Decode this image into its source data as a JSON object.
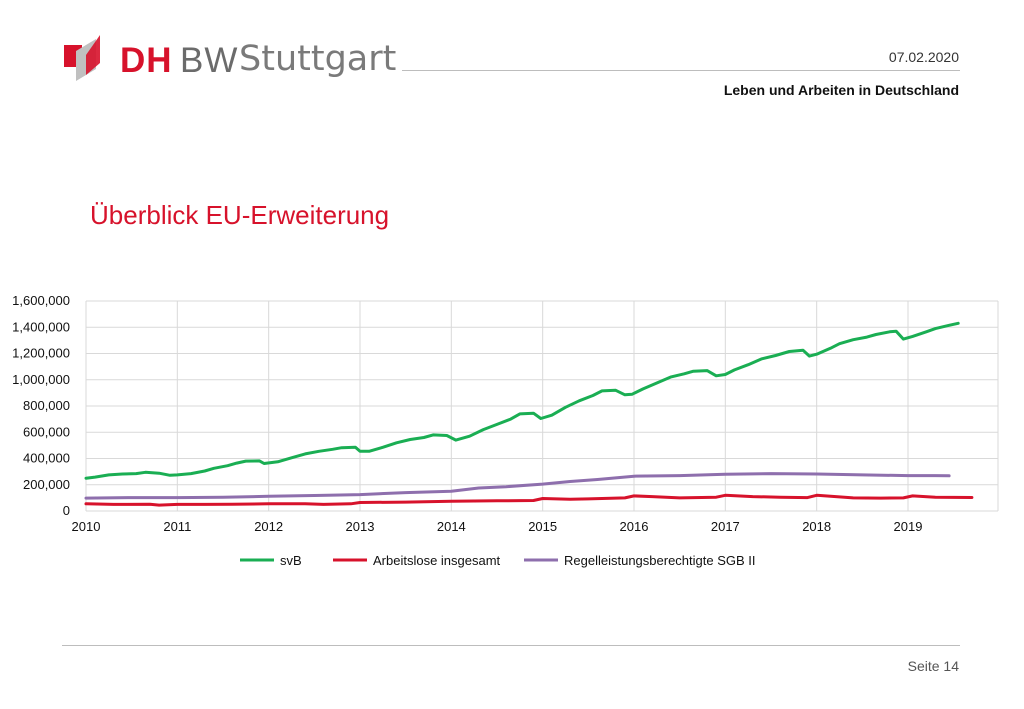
{
  "header": {
    "logo_dh": "DH",
    "logo_bw": "BW",
    "logo_city": "Stuttgart",
    "date": "07.02.2020",
    "title": "Leben und Arbeiten in Deutschland"
  },
  "slide": {
    "title": "Überblick EU-Erweiterung",
    "page": "Seite 14"
  },
  "colors": {
    "brand_red": "#d7122b",
    "svb": "#1aae53",
    "arbeitslose": "#d7122b",
    "sgb": "#8e6fad",
    "grid": "#d9d9d9"
  },
  "chart_data": {
    "type": "line",
    "title": "",
    "xlabel": "",
    "ylabel": "",
    "xlim": [
      2010,
      2020
    ],
    "ylim": [
      0,
      1600000
    ],
    "x_ticks": [
      2010,
      2011,
      2012,
      2013,
      2014,
      2015,
      2016,
      2017,
      2018,
      2019
    ],
    "y_ticks": [
      0,
      200000,
      400000,
      600000,
      800000,
      1000000,
      1200000,
      1400000,
      1600000
    ],
    "y_tick_labels": [
      "0",
      "200,000",
      "400,000",
      "600,000",
      "800,000",
      "1,000,000",
      "1,200,000",
      "1,400,000",
      "1,600,000"
    ],
    "grid": true,
    "legend_position": "bottom",
    "series": [
      {
        "name": "svB",
        "color": "#1aae53",
        "points": [
          [
            2010.0,
            250000
          ],
          [
            2010.1,
            258000
          ],
          [
            2010.25,
            275000
          ],
          [
            2010.4,
            282000
          ],
          [
            2010.55,
            285000
          ],
          [
            2010.65,
            295000
          ],
          [
            2010.8,
            288000
          ],
          [
            2010.92,
            272000
          ],
          [
            2011.0,
            275000
          ],
          [
            2011.15,
            285000
          ],
          [
            2011.3,
            305000
          ],
          [
            2011.4,
            325000
          ],
          [
            2011.55,
            345000
          ],
          [
            2011.65,
            365000
          ],
          [
            2011.75,
            380000
          ],
          [
            2011.9,
            382000
          ],
          [
            2011.95,
            362000
          ],
          [
            2012.1,
            375000
          ],
          [
            2012.25,
            405000
          ],
          [
            2012.4,
            435000
          ],
          [
            2012.55,
            455000
          ],
          [
            2012.7,
            470000
          ],
          [
            2012.8,
            482000
          ],
          [
            2012.95,
            485000
          ],
          [
            2013.0,
            455000
          ],
          [
            2013.1,
            455000
          ],
          [
            2013.25,
            485000
          ],
          [
            2013.4,
            520000
          ],
          [
            2013.55,
            545000
          ],
          [
            2013.7,
            560000
          ],
          [
            2013.8,
            580000
          ],
          [
            2013.95,
            575000
          ],
          [
            2014.05,
            540000
          ],
          [
            2014.2,
            570000
          ],
          [
            2014.35,
            620000
          ],
          [
            2014.5,
            660000
          ],
          [
            2014.65,
            700000
          ],
          [
            2014.75,
            740000
          ],
          [
            2014.9,
            745000
          ],
          [
            2014.98,
            705000
          ],
          [
            2015.1,
            730000
          ],
          [
            2015.25,
            790000
          ],
          [
            2015.4,
            840000
          ],
          [
            2015.55,
            880000
          ],
          [
            2015.65,
            915000
          ],
          [
            2015.8,
            920000
          ],
          [
            2015.9,
            885000
          ],
          [
            2015.98,
            890000
          ],
          [
            2016.1,
            930000
          ],
          [
            2016.25,
            975000
          ],
          [
            2016.4,
            1020000
          ],
          [
            2016.55,
            1045000
          ],
          [
            2016.65,
            1065000
          ],
          [
            2016.8,
            1070000
          ],
          [
            2016.9,
            1030000
          ],
          [
            2017.0,
            1040000
          ],
          [
            2017.1,
            1075000
          ],
          [
            2017.25,
            1115000
          ],
          [
            2017.4,
            1160000
          ],
          [
            2017.55,
            1185000
          ],
          [
            2017.7,
            1215000
          ],
          [
            2017.85,
            1225000
          ],
          [
            2017.92,
            1180000
          ],
          [
            2018.0,
            1195000
          ],
          [
            2018.15,
            1240000
          ],
          [
            2018.25,
            1275000
          ],
          [
            2018.4,
            1305000
          ],
          [
            2018.55,
            1325000
          ],
          [
            2018.65,
            1345000
          ],
          [
            2018.8,
            1365000
          ],
          [
            2018.87,
            1370000
          ],
          [
            2018.95,
            1310000
          ],
          [
            2019.05,
            1330000
          ],
          [
            2019.2,
            1365000
          ],
          [
            2019.3,
            1390000
          ],
          [
            2019.45,
            1415000
          ],
          [
            2019.55,
            1430000
          ]
        ]
      },
      {
        "name": "Arbeitslose insgesamt",
        "color": "#d7122b",
        "points": [
          [
            2010.0,
            55000
          ],
          [
            2010.3,
            50000
          ],
          [
            2010.7,
            52000
          ],
          [
            2010.8,
            45000
          ],
          [
            2011.0,
            50000
          ],
          [
            2011.3,
            50000
          ],
          [
            2011.6,
            52000
          ],
          [
            2012.0,
            55000
          ],
          [
            2012.4,
            55000
          ],
          [
            2012.6,
            50000
          ],
          [
            2012.9,
            55000
          ],
          [
            2013.0,
            65000
          ],
          [
            2013.5,
            68000
          ],
          [
            2014.0,
            75000
          ],
          [
            2014.5,
            78000
          ],
          [
            2014.9,
            80000
          ],
          [
            2015.0,
            95000
          ],
          [
            2015.3,
            90000
          ],
          [
            2015.5,
            92000
          ],
          [
            2015.9,
            100000
          ],
          [
            2016.0,
            115000
          ],
          [
            2016.2,
            110000
          ],
          [
            2016.5,
            100000
          ],
          [
            2016.9,
            105000
          ],
          [
            2017.0,
            120000
          ],
          [
            2017.3,
            110000
          ],
          [
            2017.6,
            105000
          ],
          [
            2017.9,
            102000
          ],
          [
            2018.0,
            120000
          ],
          [
            2018.4,
            100000
          ],
          [
            2018.7,
            98000
          ],
          [
            2018.95,
            100000
          ],
          [
            2019.05,
            115000
          ],
          [
            2019.3,
            105000
          ],
          [
            2019.7,
            103000
          ]
        ]
      },
      {
        "name": "Regelleistungsberechtigte SGB II",
        "color": "#8e6fad",
        "points": [
          [
            2010.0,
            98000
          ],
          [
            2010.5,
            102000
          ],
          [
            2011.0,
            102000
          ],
          [
            2011.5,
            105000
          ],
          [
            2012.0,
            112000
          ],
          [
            2012.5,
            118000
          ],
          [
            2013.0,
            125000
          ],
          [
            2013.5,
            140000
          ],
          [
            2014.0,
            150000
          ],
          [
            2014.3,
            175000
          ],
          [
            2014.6,
            185000
          ],
          [
            2015.0,
            205000
          ],
          [
            2015.3,
            225000
          ],
          [
            2015.6,
            240000
          ],
          [
            2016.0,
            265000
          ],
          [
            2016.5,
            270000
          ],
          [
            2017.0,
            280000
          ],
          [
            2017.5,
            285000
          ],
          [
            2018.0,
            282000
          ],
          [
            2018.5,
            275000
          ],
          [
            2019.0,
            270000
          ],
          [
            2019.3,
            270000
          ],
          [
            2019.45,
            268000
          ]
        ]
      }
    ]
  }
}
